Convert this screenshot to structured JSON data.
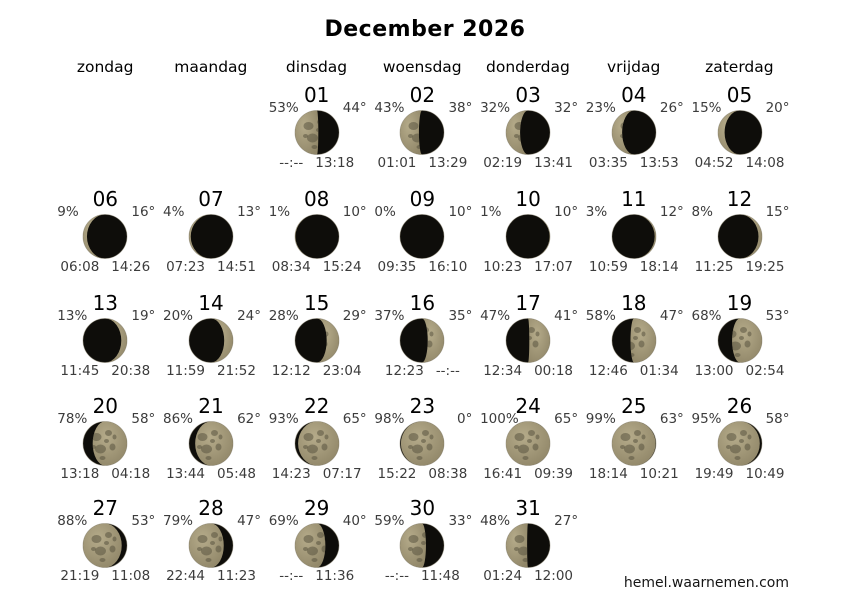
{
  "title": "December 2026",
  "weekdays": [
    "zondag",
    "maandag",
    "dinsdag",
    "woensdag",
    "donderdag",
    "vrijdag",
    "zaterdag"
  ],
  "footer": "hemel.waarnemen.com",
  "moon_colors": {
    "lit_center": "#b5ab8a",
    "lit_edge": "#8f8567",
    "spot": "#5a5440",
    "dark": "#0e0d0a",
    "rim": "rgba(110,104,82,0.45)"
  },
  "days": [
    {
      "day": "01",
      "pct": "53%",
      "deg": "44°",
      "t1": "--:--",
      "t2": "13:18",
      "lit": 53,
      "side": "left"
    },
    {
      "day": "02",
      "pct": "43%",
      "deg": "38°",
      "t1": "01:01",
      "t2": "13:29",
      "lit": 43,
      "side": "left"
    },
    {
      "day": "03",
      "pct": "32%",
      "deg": "32°",
      "t1": "02:19",
      "t2": "13:41",
      "lit": 32,
      "side": "left"
    },
    {
      "day": "04",
      "pct": "23%",
      "deg": "26°",
      "t1": "03:35",
      "t2": "13:53",
      "lit": 23,
      "side": "left"
    },
    {
      "day": "05",
      "pct": "15%",
      "deg": "20°",
      "t1": "04:52",
      "t2": "14:08",
      "lit": 15,
      "side": "left"
    },
    {
      "day": "06",
      "pct": "9%",
      "deg": "16°",
      "t1": "06:08",
      "t2": "14:26",
      "lit": 9,
      "side": "left"
    },
    {
      "day": "07",
      "pct": "4%",
      "deg": "13°",
      "t1": "07:23",
      "t2": "14:51",
      "lit": 4,
      "side": "left"
    },
    {
      "day": "08",
      "pct": "1%",
      "deg": "10°",
      "t1": "08:34",
      "t2": "15:24",
      "lit": 1,
      "side": "left"
    },
    {
      "day": "09",
      "pct": "0%",
      "deg": "10°",
      "t1": "09:35",
      "t2": "16:10",
      "lit": 0,
      "side": "none"
    },
    {
      "day": "10",
      "pct": "1%",
      "deg": "10°",
      "t1": "10:23",
      "t2": "17:07",
      "lit": 1,
      "side": "right"
    },
    {
      "day": "11",
      "pct": "3%",
      "deg": "12°",
      "t1": "10:59",
      "t2": "18:14",
      "lit": 3,
      "side": "right"
    },
    {
      "day": "12",
      "pct": "8%",
      "deg": "15°",
      "t1": "11:25",
      "t2": "19:25",
      "lit": 8,
      "side": "right"
    },
    {
      "day": "13",
      "pct": "13%",
      "deg": "19°",
      "t1": "11:45",
      "t2": "20:38",
      "lit": 13,
      "side": "right"
    },
    {
      "day": "14",
      "pct": "20%",
      "deg": "24°",
      "t1": "11:59",
      "t2": "21:52",
      "lit": 20,
      "side": "right"
    },
    {
      "day": "15",
      "pct": "28%",
      "deg": "29°",
      "t1": "12:12",
      "t2": "23:04",
      "lit": 28,
      "side": "right"
    },
    {
      "day": "16",
      "pct": "37%",
      "deg": "35°",
      "t1": "12:23",
      "t2": "--:--",
      "lit": 37,
      "side": "right"
    },
    {
      "day": "17",
      "pct": "47%",
      "deg": "41°",
      "t1": "12:34",
      "t2": "00:18",
      "lit": 47,
      "side": "right"
    },
    {
      "day": "18",
      "pct": "58%",
      "deg": "47°",
      "t1": "12:46",
      "t2": "01:34",
      "lit": 58,
      "side": "right"
    },
    {
      "day": "19",
      "pct": "68%",
      "deg": "53°",
      "t1": "13:00",
      "t2": "02:54",
      "lit": 68,
      "side": "right"
    },
    {
      "day": "20",
      "pct": "78%",
      "deg": "58°",
      "t1": "13:18",
      "t2": "04:18",
      "lit": 78,
      "side": "right"
    },
    {
      "day": "21",
      "pct": "86%",
      "deg": "62°",
      "t1": "13:44",
      "t2": "05:48",
      "lit": 86,
      "side": "right"
    },
    {
      "day": "22",
      "pct": "93%",
      "deg": "65°",
      "t1": "14:23",
      "t2": "07:17",
      "lit": 93,
      "side": "right"
    },
    {
      "day": "23",
      "pct": "98%",
      "deg": "0°",
      "t1": "15:22",
      "t2": "08:38",
      "lit": 98,
      "side": "right"
    },
    {
      "day": "24",
      "pct": "100%",
      "deg": "65°",
      "t1": "16:41",
      "t2": "09:39",
      "lit": 100,
      "side": "full"
    },
    {
      "day": "25",
      "pct": "99%",
      "deg": "63°",
      "t1": "18:14",
      "t2": "10:21",
      "lit": 99,
      "side": "left"
    },
    {
      "day": "26",
      "pct": "95%",
      "deg": "58°",
      "t1": "19:49",
      "t2": "10:49",
      "lit": 95,
      "side": "left"
    },
    {
      "day": "27",
      "pct": "88%",
      "deg": "53°",
      "t1": "21:19",
      "t2": "11:08",
      "lit": 88,
      "side": "left"
    },
    {
      "day": "28",
      "pct": "79%",
      "deg": "47°",
      "t1": "22:44",
      "t2": "11:23",
      "lit": 79,
      "side": "left"
    },
    {
      "day": "29",
      "pct": "69%",
      "deg": "40°",
      "t1": "--:--",
      "t2": "11:36",
      "lit": 69,
      "side": "left"
    },
    {
      "day": "30",
      "pct": "59%",
      "deg": "33°",
      "t1": "--:--",
      "t2": "11:48",
      "lit": 59,
      "side": "left"
    },
    {
      "day": "31",
      "pct": "48%",
      "deg": "27°",
      "t1": "01:24",
      "t2": "12:00",
      "lit": 48,
      "side": "left"
    }
  ]
}
